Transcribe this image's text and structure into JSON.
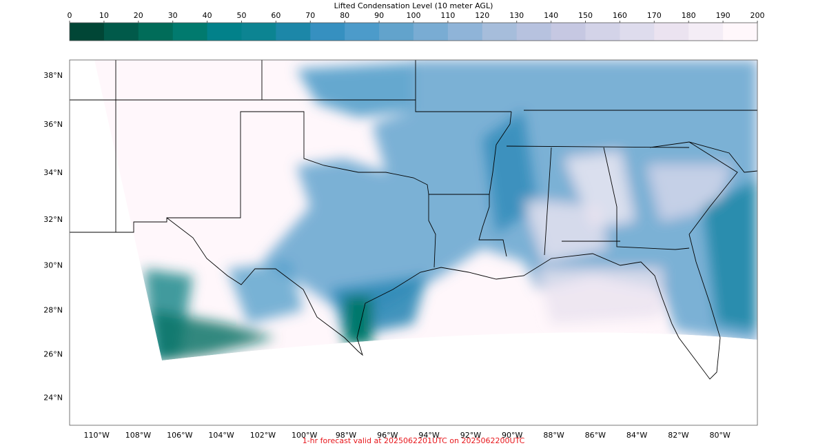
{
  "colorbar": {
    "title": "Lifted Condensation Level (10 meter AGL)",
    "lim": [
      0,
      200
    ],
    "ticks": [
      0,
      10,
      20,
      30,
      40,
      50,
      60,
      70,
      80,
      90,
      100,
      110,
      120,
      130,
      140,
      150,
      160,
      170,
      180,
      190,
      200
    ],
    "colors": [
      "#014636",
      "#015a4a",
      "#016c59",
      "#017a6e",
      "#02818a",
      "#0c8492",
      "#1c87a8",
      "#3690c0",
      "#4c9bca",
      "#62a3cc",
      "#79acd3",
      "#8fb4d8",
      "#a6bddb",
      "#b7c2df",
      "#c6c8e2",
      "#d3d3e8",
      "#dedced",
      "#ebe3f0",
      "#f4edf6",
      "#fff7fb"
    ]
  },
  "map": {
    "lat_range": [
      22.7,
      38.6
    ],
    "lon_range": [
      -111.3,
      -78.2
    ],
    "lat_ticks": [
      {
        "value": 38,
        "label": "38°N"
      },
      {
        "value": 36,
        "label": "36°N"
      },
      {
        "value": 34,
        "label": "34°N"
      },
      {
        "value": 32,
        "label": "32°N"
      },
      {
        "value": 30,
        "label": "30°N"
      },
      {
        "value": 28,
        "label": "28°N"
      },
      {
        "value": 26,
        "label": "26°N"
      },
      {
        "value": 24,
        "label": "24°N"
      }
    ],
    "lon_ticks": [
      {
        "value": -110,
        "label": "110°W"
      },
      {
        "value": -108,
        "label": "108°W"
      },
      {
        "value": -106,
        "label": "106°W"
      },
      {
        "value": -104,
        "label": "104°W"
      },
      {
        "value": -102,
        "label": "102°W"
      },
      {
        "value": -100,
        "label": "100°W"
      },
      {
        "value": -98,
        "label": "98°W"
      },
      {
        "value": -96,
        "label": "96°W"
      },
      {
        "value": -94,
        "label": "94°W"
      },
      {
        "value": -92,
        "label": "92°W"
      },
      {
        "value": -90,
        "label": "90°W"
      },
      {
        "value": -88,
        "label": "88°W"
      },
      {
        "value": -86,
        "label": "86°W"
      },
      {
        "value": -84,
        "label": "84°W"
      },
      {
        "value": -82,
        "label": "82°W"
      },
      {
        "value": -80,
        "label": "80°W"
      }
    ]
  },
  "footer": "1-hr forecast valid at 2025062201UTC on 2025062200UTC"
}
